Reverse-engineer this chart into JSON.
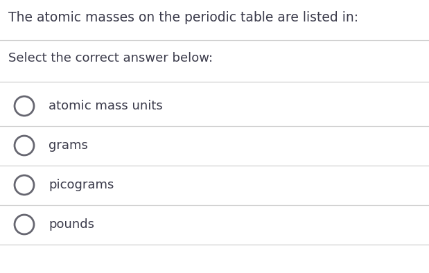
{
  "title": "The atomic masses on the periodic table are listed in:",
  "subtitle": "Select the correct answer below:",
  "options": [
    "atomic mass units",
    "grams",
    "picograms",
    "pounds"
  ],
  "background_color": "#ffffff",
  "title_color": "#3a3a4a",
  "subtitle_color": "#3a3a4a",
  "option_text_color": "#3a3a4a",
  "line_color": "#d0d0d0",
  "title_fontsize": 13.5,
  "subtitle_fontsize": 13.0,
  "option_fontsize": 13.0,
  "circle_color": "#666670",
  "fig_width": 6.19,
  "fig_height": 3.94,
  "dpi": 100
}
